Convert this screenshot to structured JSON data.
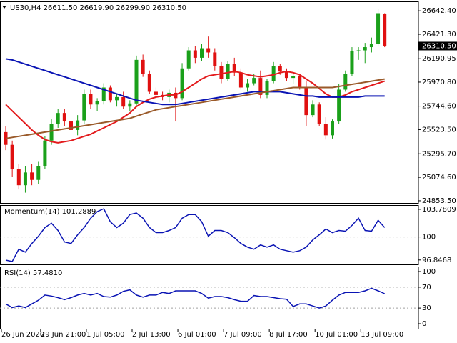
{
  "chart_data": [
    {
      "type": "candlestick",
      "title": "US30,H4  26611.50 26619.90 26299.90 26310.50",
      "categories": [
        "26 Jun 2020",
        null,
        null,
        null,
        null,
        null,
        "29 Jun 21:00",
        null,
        null,
        null,
        null,
        null,
        null,
        "1 Jul 05:00",
        null,
        null,
        null,
        null,
        null,
        null,
        "2 Jul 13:00",
        null,
        null,
        null,
        null,
        null,
        null,
        "6 Jul 01:00",
        null,
        null,
        null,
        null,
        null,
        null,
        "7 Jul 09:00",
        null,
        null,
        null,
        null,
        null,
        null,
        "8 Jul 17:00",
        null,
        null,
        null,
        null,
        null,
        null,
        "10 Jul 01:00",
        null,
        null,
        null,
        null,
        null,
        null,
        "13 Jul 09:00",
        null,
        null,
        null
      ],
      "open": [
        25500,
        25380,
        25150,
        25000,
        25120,
        25050,
        25180,
        25420,
        25580,
        25680,
        25600,
        25520,
        25610,
        25860,
        25760,
        25790,
        25920,
        25800,
        25830,
        25740,
        25770,
        26180,
        26050,
        25880,
        25850,
        25830,
        25870,
        25820,
        26100,
        26270,
        26200,
        26290,
        26250,
        26120,
        26000,
        26140,
        26060,
        25920,
        25960,
        26010,
        25850,
        25980,
        26120,
        26070,
        26010,
        26030,
        25920,
        25660,
        25760,
        25580,
        25470,
        25600,
        25900,
        26050,
        26260,
        26270,
        26300,
        26330,
        26611.5
      ],
      "high": [
        25560,
        25420,
        25200,
        25180,
        25200,
        25220,
        25460,
        25620,
        25720,
        25720,
        25640,
        25660,
        25900,
        25900,
        25820,
        25960,
        25940,
        25860,
        25880,
        25800,
        26220,
        26230,
        26080,
        25920,
        25880,
        25900,
        25920,
        26150,
        26300,
        26310,
        26330,
        26400,
        26290,
        26160,
        26170,
        26200,
        26100,
        26000,
        26050,
        26080,
        26000,
        26160,
        26140,
        26100,
        26060,
        26050,
        25980,
        25800,
        25780,
        25640,
        25620,
        25950,
        26080,
        26300,
        26300,
        26340,
        26390,
        26660,
        26619.9
      ],
      "low": [
        25330,
        25080,
        24960,
        24930,
        25000,
        25010,
        25150,
        25380,
        25540,
        25560,
        25480,
        25470,
        25580,
        25720,
        25700,
        25760,
        25780,
        25740,
        25720,
        25700,
        25750,
        26020,
        25860,
        25820,
        25800,
        25780,
        25600,
        25800,
        26080,
        26150,
        26170,
        26200,
        26080,
        25960,
        25980,
        26030,
        25900,
        25880,
        25940,
        25820,
        25820,
        25960,
        26040,
        25980,
        25950,
        25900,
        25560,
        25640,
        25560,
        25430,
        25440,
        25580,
        25880,
        26030,
        26180,
        26150,
        26250,
        26310,
        26299.9
      ],
      "close": [
        25380,
        25150,
        25000,
        25120,
        25050,
        25180,
        25420,
        25580,
        25680,
        25600,
        25520,
        25610,
        25860,
        25760,
        25790,
        25920,
        25800,
        25830,
        25740,
        25770,
        26180,
        26050,
        25880,
        25850,
        25830,
        25870,
        25820,
        26100,
        26270,
        26200,
        26290,
        26250,
        26120,
        26000,
        26140,
        26060,
        25920,
        25960,
        26010,
        25850,
        25980,
        26120,
        26070,
        26010,
        26030,
        25920,
        25660,
        25760,
        25580,
        25470,
        25600,
        25900,
        26050,
        26260,
        26270,
        26300,
        26330,
        26620,
        26310.5
      ],
      "up_color": "#1aa01a",
      "down_color": "#e01010",
      "series": [
        {
          "color": "#e31a1c",
          "values": [
            25760,
            25700,
            25640,
            25580,
            25520,
            25470,
            25430,
            25410,
            25400,
            25410,
            25420,
            25440,
            25460,
            25480,
            25510,
            25540,
            25570,
            25600,
            25640,
            25680,
            25740,
            25780,
            25810,
            25830,
            25840,
            25850,
            25850,
            25880,
            25920,
            25960,
            26000,
            26030,
            26040,
            26050,
            26060,
            26070,
            26060,
            26040,
            26030,
            26020,
            26030,
            26040,
            26060,
            26070,
            26060,
            26040,
            26000,
            25960,
            25910,
            25860,
            25830,
            25830,
            25850,
            25880,
            25900,
            25920,
            25940,
            25960,
            25980
          ]
        },
        {
          "color": "#0a14b4",
          "values": [
            26190,
            26180,
            26160,
            26140,
            26120,
            26100,
            26080,
            26060,
            26040,
            26020,
            26000,
            25980,
            25960,
            25940,
            25920,
            25900,
            25880,
            25860,
            25840,
            25820,
            25800,
            25790,
            25780,
            25770,
            25760,
            25760,
            25760,
            25770,
            25780,
            25790,
            25800,
            25810,
            25820,
            25830,
            25840,
            25850,
            25860,
            25870,
            25880,
            25880,
            25880,
            25880,
            25880,
            25870,
            25860,
            25850,
            25840,
            25840,
            25830,
            25830,
            25830,
            25830,
            25830,
            25830,
            25830,
            25840,
            25840,
            25840,
            25840
          ]
        },
        {
          "color": "#9a5a2a",
          "values": [
            25440,
            25450,
            25460,
            25470,
            25480,
            25490,
            25500,
            25510,
            25520,
            25530,
            25540,
            25550,
            25560,
            25570,
            25580,
            25590,
            25600,
            25610,
            25620,
            25630,
            25650,
            25670,
            25690,
            25710,
            25720,
            25730,
            25740,
            25750,
            25760,
            25770,
            25780,
            25790,
            25800,
            25810,
            25820,
            25830,
            25840,
            25850,
            25860,
            25870,
            25880,
            25890,
            25900,
            25910,
            25920,
            25920,
            25920,
            25920,
            25920,
            25920,
            25920,
            25930,
            25940,
            25950,
            25960,
            25970,
            25980,
            25990,
            26000
          ]
        }
      ],
      "current_price": {
        "value": 26310.5,
        "label": "26310.50"
      },
      "ylim": [
        24833,
        26731
      ],
      "yticks": [
        {
          "value": 26642.4,
          "label": "26642.40"
        },
        {
          "value": 26421.3,
          "label": "26421.30"
        },
        {
          "value": 26190.95,
          "label": "26190.95"
        },
        {
          "value": 25970.8,
          "label": "25970.80"
        },
        {
          "value": 25744.6,
          "label": "25744.60"
        },
        {
          "value": 25523.5,
          "label": "25523.50"
        },
        {
          "value": 25295.7,
          "label": "25295.70"
        },
        {
          "value": 25074.6,
          "label": "25074.60"
        },
        {
          "value": 24853.5,
          "label": "24853.50"
        }
      ]
    },
    {
      "type": "line",
      "title": "Momentum(14) 101.2889",
      "color": "#0a14b4",
      "values": [
        96.83,
        96.63,
        98.32,
        97.92,
        99.11,
        100.1,
        101.29,
        101.88,
        100.89,
        99.31,
        99.11,
        100.3,
        101.29,
        102.57,
        103.47,
        103.86,
        102.08,
        101.29,
        101.88,
        103.07,
        103.27,
        102.57,
        101.29,
        100.59,
        100.59,
        100.89,
        101.29,
        102.57,
        103.07,
        103.07,
        102.08,
        100.1,
        100.89,
        100.89,
        100.59,
        99.9,
        99.11,
        98.61,
        98.32,
        98.91,
        98.61,
        98.91,
        98.32,
        98.12,
        97.92,
        98.12,
        98.61,
        99.6,
        100.3,
        101.09,
        100.59,
        100.89,
        100.79,
        101.58,
        102.57,
        100.89,
        100.79,
        102.28,
        101.2889
      ],
      "ylim": [
        96.24,
        104.36
      ],
      "yticks": [
        103.7809,
        100,
        96.8468
      ],
      "levels": [
        100
      ]
    },
    {
      "type": "line",
      "title": "RSI(14) 57.4810",
      "color": "#0a14b4",
      "values": [
        38,
        31,
        34,
        31,
        38,
        45,
        55,
        53,
        50,
        46,
        50,
        55,
        58,
        55,
        58,
        52,
        51,
        55,
        62,
        65,
        55,
        51,
        55,
        55,
        60,
        58,
        63,
        63,
        63,
        63,
        58,
        49,
        52,
        52,
        50,
        46,
        43,
        43,
        54,
        52,
        52,
        50,
        48,
        47,
        33,
        38,
        38,
        34,
        30,
        34,
        45,
        55,
        60,
        60,
        60,
        63,
        68,
        63,
        57.481
      ],
      "ylim": [
        -9.6,
        109.6
      ],
      "yticks": [
        100,
        70,
        30,
        0
      ],
      "levels": [
        70,
        30
      ]
    }
  ]
}
